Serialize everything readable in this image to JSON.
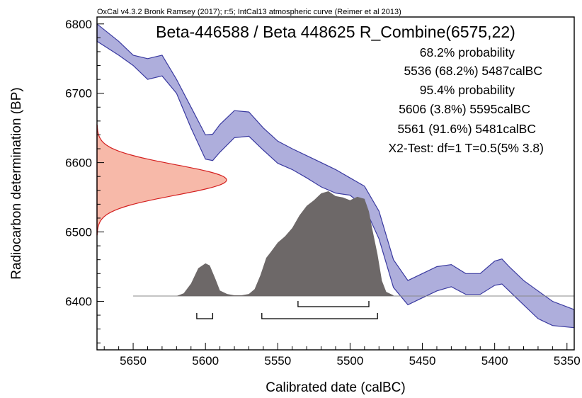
{
  "chart_data": {
    "type": "area",
    "header": "OxCal v4.3.2 Bronk Ramsey (2017); r:5; IntCal13 atmospheric curve (Reimer et al 2013)",
    "title": "Beta-446588 / Beta 448625 R_Combine(6575,22)",
    "annotations": [
      "68.2% probability",
      "5536 (68.2%) 5487calBC",
      "95.4% probability",
      "5606 (3.8%) 5595calBC",
      "5561 (91.6%) 5481calBC",
      "X2-Test: df=1 T=0.5(5% 3.8)"
    ],
    "xlabel": "Calibrated date (calBC)",
    "ylabel": "Radiocarbon determination (BP)",
    "x_reversed": true,
    "xlim": [
      5675,
      5345
    ],
    "ylim": [
      6330,
      6810
    ],
    "x_ticks": [
      5650,
      5600,
      5550,
      5500,
      5450,
      5400,
      5350
    ],
    "y_ticks": [
      6400,
      6500,
      6600,
      6700,
      6800
    ],
    "colors": {
      "calibration_band_fill": "#aeaedc",
      "calibration_band_edge": "#3a3aa0",
      "radiocarbon_fill": "#f7b9a9",
      "radiocarbon_edge": "#d42020",
      "posterior_fill": "#6d6868"
    },
    "calibration_curve": {
      "x": [
        5675,
        5660,
        5650,
        5640,
        5630,
        5620,
        5610,
        5600,
        5595,
        5590,
        5580,
        5570,
        5560,
        5550,
        5540,
        5530,
        5520,
        5510,
        5500,
        5490,
        5480,
        5470,
        5460,
        5450,
        5440,
        5430,
        5420,
        5410,
        5400,
        5395,
        5390,
        5380,
        5370,
        5360,
        5345
      ],
      "upper": [
        6800,
        6775,
        6755,
        6750,
        6755,
        6720,
        6680,
        6640,
        6641,
        6655,
        6675,
        6673,
        6650,
        6631,
        6620,
        6610,
        6600,
        6590,
        6578,
        6566,
        6530,
        6460,
        6430,
        6440,
        6450,
        6453,
        6440,
        6440,
        6458,
        6461,
        6450,
        6430,
        6415,
        6400,
        6388
      ],
      "lower": [
        6775,
        6755,
        6740,
        6720,
        6725,
        6700,
        6650,
        6605,
        6603,
        6615,
        6636,
        6638,
        6618,
        6599,
        6590,
        6578,
        6565,
        6556,
        6553,
        6536,
        6490,
        6420,
        6395,
        6405,
        6415,
        6421,
        6410,
        6410,
        6423,
        6425,
        6415,
        6395,
        6375,
        6365,
        6362
      ]
    },
    "radiocarbon_distribution": {
      "mean_bp": 6575,
      "sigma_bp": 22
    },
    "posterior_distribution": {
      "x": [
        5650,
        5620,
        5615,
        5610,
        5605,
        5600,
        5597,
        5593,
        5590,
        5585,
        5580,
        5575,
        5570,
        5566,
        5562,
        5558,
        5555,
        5550,
        5545,
        5540,
        5535,
        5530,
        5525,
        5520,
        5515,
        5510,
        5505,
        5500,
        5495,
        5490,
        5487,
        5485,
        5481,
        5478,
        5475,
        5470,
        5470,
        5650
      ],
      "height": [
        0,
        0,
        4,
        18,
        40,
        47,
        44,
        24,
        8,
        3,
        1,
        1,
        3,
        10,
        30,
        55,
        63,
        77,
        86,
        98,
        116,
        130,
        138,
        148,
        151,
        144,
        142,
        138,
        143,
        140,
        122,
        100,
        60,
        22,
        6,
        1,
        0,
        0
      ]
    },
    "range_68": [
      [
        5536,
        5487
      ]
    ],
    "range_95": [
      [
        5606,
        5595
      ],
      [
        5561,
        5481
      ]
    ]
  }
}
